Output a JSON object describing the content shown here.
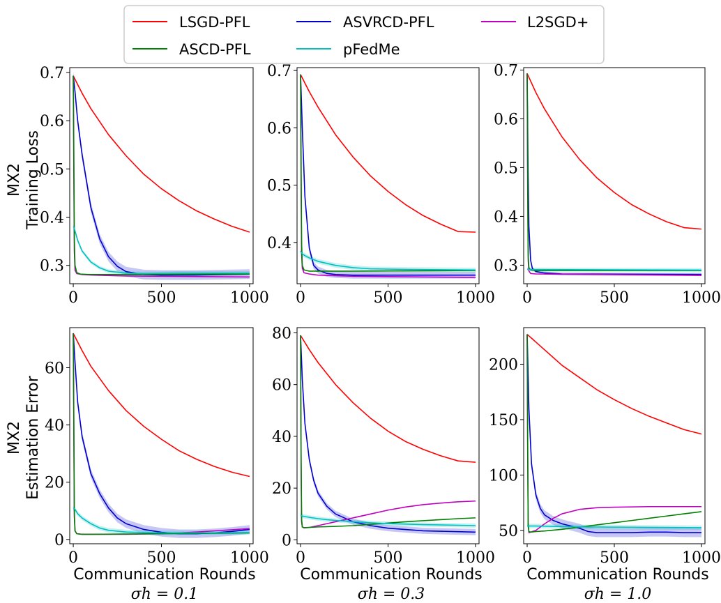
{
  "legend": {
    "entries": [
      {
        "label": "LSGD-PFL",
        "color": "#ff0000"
      },
      {
        "label": "ASVRCD-PFL",
        "color": "#0000cc"
      },
      {
        "label": "L2SGD+",
        "color": "#c000c0"
      },
      {
        "label": "ASCD-PFL",
        "color": "#008000"
      },
      {
        "label": "pFedMe",
        "color": "#00bfbf"
      }
    ]
  },
  "rows": [
    {
      "ylabel_line1": "MX2",
      "ylabel_line2": "Training Loss"
    },
    {
      "ylabel_line1": "MX2",
      "ylabel_line2": "Estimation Error"
    }
  ],
  "columns": [
    {
      "xlabel": "Communication Rounds",
      "sigma_label": "σh = 0.1"
    },
    {
      "xlabel": "Communication Rounds",
      "sigma_label": "σh = 0.3"
    },
    {
      "xlabel": "Communication Rounds",
      "sigma_label": "σh = 1.0"
    }
  ],
  "chart_data": [
    {
      "type": "line",
      "row": 0,
      "col": 0,
      "xlim": [
        -20,
        1020
      ],
      "ylim": [
        0.262,
        0.71
      ],
      "xticks": [
        0,
        500,
        1000
      ],
      "yticks": [
        0.3,
        0.4,
        0.5,
        0.6,
        0.7
      ],
      "ytick_labels": [
        "0.3",
        "0.4",
        "0.5",
        "0.6",
        "0.7"
      ],
      "series": [
        {
          "name": "LSGD-PFL",
          "color": "#ff0000",
          "x": [
            0,
            50,
            100,
            200,
            300,
            400,
            500,
            600,
            700,
            800,
            900,
            1000
          ],
          "y": [
            0.693,
            0.657,
            0.625,
            0.571,
            0.527,
            0.489,
            0.459,
            0.434,
            0.413,
            0.396,
            0.381,
            0.369
          ]
        },
        {
          "name": "ASVRCD-PFL",
          "color": "#0000cc",
          "band": 0.01,
          "x": [
            0,
            10,
            25,
            50,
            100,
            150,
            200,
            250,
            300,
            400,
            500,
            700,
            1000
          ],
          "y": [
            0.693,
            0.66,
            0.6,
            0.53,
            0.42,
            0.355,
            0.318,
            0.298,
            0.287,
            0.281,
            0.28,
            0.28,
            0.282
          ]
        },
        {
          "name": "L2SGD+",
          "color": "#c000c0",
          "x": [
            0,
            3,
            6,
            10,
            20,
            50,
            100,
            300,
            1000
          ],
          "y": [
            0.693,
            0.5,
            0.33,
            0.29,
            0.283,
            0.281,
            0.28,
            0.278,
            0.276
          ]
        },
        {
          "name": "ASCD-PFL",
          "color": "#008000",
          "x": [
            0,
            3,
            6,
            10,
            20,
            40,
            100,
            300,
            1000
          ],
          "y": [
            0.693,
            0.55,
            0.36,
            0.3,
            0.285,
            0.282,
            0.281,
            0.281,
            0.282
          ]
        },
        {
          "name": "pFedMe",
          "color": "#00bfbf",
          "band": 0.004,
          "x": [
            0,
            5,
            25,
            50,
            100,
            150,
            200,
            300,
            400,
            600,
            1000
          ],
          "y": [
            0.38,
            0.378,
            0.352,
            0.33,
            0.307,
            0.295,
            0.288,
            0.284,
            0.283,
            0.284,
            0.284
          ]
        }
      ]
    },
    {
      "type": "line",
      "row": 0,
      "col": 1,
      "xlim": [
        -20,
        1020
      ],
      "ylim": [
        0.328,
        0.705
      ],
      "xticks": [
        0,
        500,
        1000
      ],
      "yticks": [
        0.4,
        0.5,
        0.6,
        0.7
      ],
      "ytick_labels": [
        "0.4",
        "0.5",
        "0.6",
        "0.7"
      ],
      "series": [
        {
          "name": "LSGD-PFL",
          "color": "#ff0000",
          "x": [
            0,
            50,
            100,
            200,
            300,
            400,
            500,
            600,
            700,
            800,
            900,
            1000
          ],
          "y": [
            0.693,
            0.663,
            0.636,
            0.588,
            0.549,
            0.516,
            0.489,
            0.466,
            0.447,
            0.432,
            0.419,
            0.418
          ]
        },
        {
          "name": "ASVRCD-PFL",
          "color": "#0000cc",
          "band": 0.006,
          "x": [
            0,
            10,
            25,
            50,
            75,
            100,
            150,
            200,
            300,
            500,
            1000
          ],
          "y": [
            0.693,
            0.6,
            0.48,
            0.39,
            0.36,
            0.352,
            0.346,
            0.344,
            0.343,
            0.343,
            0.343
          ]
        },
        {
          "name": "L2SGD+",
          "color": "#c000c0",
          "x": [
            0,
            3,
            6,
            10,
            20,
            50,
            100,
            300,
            1000
          ],
          "y": [
            0.693,
            0.5,
            0.38,
            0.355,
            0.347,
            0.345,
            0.343,
            0.341,
            0.339
          ]
        },
        {
          "name": "ASCD-PFL",
          "color": "#008000",
          "x": [
            0,
            3,
            6,
            10,
            20,
            50,
            100,
            300,
            1000
          ],
          "y": [
            0.693,
            0.55,
            0.4,
            0.36,
            0.352,
            0.35,
            0.35,
            0.35,
            0.351
          ]
        },
        {
          "name": "pFedMe",
          "color": "#00bfbf",
          "band": 0.004,
          "x": [
            0,
            10,
            25,
            50,
            100,
            200,
            300,
            400,
            600,
            1000
          ],
          "y": [
            0.385,
            0.38,
            0.377,
            0.373,
            0.367,
            0.36,
            0.356,
            0.354,
            0.353,
            0.352
          ]
        }
      ]
    },
    {
      "type": "line",
      "row": 0,
      "col": 2,
      "xlim": [
        -20,
        1020
      ],
      "ylim": [
        0.262,
        0.705
      ],
      "xticks": [
        0,
        500,
        1000
      ],
      "yticks": [
        0.3,
        0.4,
        0.5,
        0.6,
        0.7
      ],
      "ytick_labels": [
        "0.3",
        "0.4",
        "0.5",
        "0.6",
        "0.7"
      ],
      "series": [
        {
          "name": "LSGD-PFL",
          "color": "#ff0000",
          "x": [
            0,
            50,
            100,
            200,
            300,
            400,
            500,
            600,
            700,
            800,
            900,
            1000
          ],
          "y": [
            0.693,
            0.654,
            0.62,
            0.563,
            0.517,
            0.479,
            0.449,
            0.424,
            0.405,
            0.389,
            0.377,
            0.374
          ]
        },
        {
          "name": "ASVRCD-PFL",
          "color": "#0000cc",
          "band": 0.003,
          "x": [
            0,
            5,
            10,
            20,
            30,
            50,
            100,
            200,
            1000
          ],
          "y": [
            0.693,
            0.5,
            0.38,
            0.31,
            0.293,
            0.287,
            0.284,
            0.282,
            0.281
          ]
        },
        {
          "name": "L2SGD+",
          "color": "#c000c0",
          "x": [
            0,
            3,
            6,
            10,
            20,
            50,
            1000
          ],
          "y": [
            0.693,
            0.45,
            0.31,
            0.288,
            0.283,
            0.282,
            0.279
          ]
        },
        {
          "name": "ASCD-PFL",
          "color": "#008000",
          "x": [
            0,
            3,
            6,
            10,
            20,
            50,
            1000
          ],
          "y": [
            0.693,
            0.5,
            0.32,
            0.295,
            0.29,
            0.289,
            0.289
          ]
        },
        {
          "name": "pFedMe",
          "color": "#00bfbf",
          "band": 0.004,
          "x": [
            0,
            5,
            20,
            50,
            100,
            1000
          ],
          "y": [
            0.292,
            0.292,
            0.291,
            0.291,
            0.291,
            0.29
          ]
        }
      ]
    },
    {
      "type": "line",
      "row": 1,
      "col": 0,
      "xlim": [
        -20,
        1020
      ],
      "ylim": [
        -1.5,
        74
      ],
      "xticks": [
        0,
        500,
        1000
      ],
      "yticks": [
        0,
        20,
        40,
        60
      ],
      "ytick_labels": [
        "0",
        "20",
        "40",
        "60"
      ],
      "series": [
        {
          "name": "LSGD-PFL",
          "color": "#ff0000",
          "x": [
            0,
            50,
            100,
            200,
            300,
            400,
            500,
            600,
            700,
            800,
            900,
            1000
          ],
          "y": [
            72,
            66,
            60.5,
            52,
            45,
            39.5,
            35,
            31,
            28,
            25.5,
            23.5,
            22
          ]
        },
        {
          "name": "ASVRCD-PFL",
          "color": "#0000cc",
          "band": 1.5,
          "x": [
            0,
            10,
            25,
            50,
            100,
            150,
            200,
            250,
            300,
            400,
            500,
            600,
            700,
            800,
            900,
            1000
          ],
          "y": [
            72,
            62,
            48,
            36,
            23,
            16,
            11,
            7.5,
            5.5,
            3.5,
            2.5,
            2,
            2,
            2.3,
            2.8,
            3.5
          ]
        },
        {
          "name": "L2SGD+",
          "color": "#c000c0",
          "x": [
            0,
            3,
            6,
            10,
            20,
            50,
            100,
            300,
            500,
            700,
            1000
          ],
          "y": [
            72,
            40,
            8,
            3,
            2,
            1.8,
            1.8,
            1.8,
            2,
            2.6,
            3.8
          ]
        },
        {
          "name": "ASCD-PFL",
          "color": "#008000",
          "x": [
            0,
            3,
            6,
            10,
            20,
            50,
            100,
            300,
            500,
            1000
          ],
          "y": [
            72,
            45,
            10,
            3,
            2,
            1.8,
            1.8,
            1.9,
            2,
            2.3
          ]
        },
        {
          "name": "pFedMe",
          "color": "#00bfbf",
          "band": 0.8,
          "x": [
            0,
            10,
            25,
            50,
            100,
            150,
            200,
            300,
            400,
            500,
            700,
            1000
          ],
          "y": [
            11,
            10.5,
            9,
            7.5,
            5.5,
            4,
            3.2,
            2.6,
            2.4,
            2.3,
            2.3,
            2.4
          ]
        }
      ]
    },
    {
      "type": "line",
      "row": 1,
      "col": 1,
      "xlim": [
        -20,
        1020
      ],
      "ylim": [
        -1.5,
        82
      ],
      "xticks": [
        0,
        500,
        1000
      ],
      "yticks": [
        0,
        20,
        40,
        60,
        80
      ],
      "ytick_labels": [
        "0",
        "20",
        "40",
        "60",
        "80"
      ],
      "series": [
        {
          "name": "LSGD-PFL",
          "color": "#ff0000",
          "x": [
            0,
            50,
            100,
            200,
            300,
            400,
            500,
            600,
            700,
            800,
            900,
            1000
          ],
          "y": [
            79,
            73.5,
            68.5,
            60,
            53,
            47,
            42,
            38,
            35,
            32.5,
            30.5,
            30
          ]
        },
        {
          "name": "ASVRCD-PFL",
          "color": "#0000cc",
          "band": 1.2,
          "x": [
            0,
            10,
            25,
            50,
            75,
            100,
            150,
            200,
            300,
            400,
            500,
            700,
            1000
          ],
          "y": [
            79,
            62,
            45,
            31,
            23,
            18,
            13,
            10,
            7,
            5.5,
            4.5,
            3.5,
            3
          ]
        },
        {
          "name": "L2SGD+",
          "color": "#c000c0",
          "x": [
            0,
            3,
            6,
            10,
            20,
            50,
            100,
            200,
            300,
            400,
            500,
            600,
            700,
            800,
            900,
            1000
          ],
          "y": [
            79,
            30,
            7,
            5,
            4.6,
            4.8,
            5.5,
            7,
            8.5,
            10,
            11.5,
            12.7,
            13.6,
            14.2,
            14.7,
            15
          ]
        },
        {
          "name": "ASCD-PFL",
          "color": "#008000",
          "x": [
            0,
            3,
            6,
            10,
            20,
            50,
            100,
            200,
            300,
            400,
            500,
            600,
            700,
            800,
            900,
            1000
          ],
          "y": [
            79,
            35,
            8,
            5,
            4.7,
            4.8,
            5,
            5.2,
            5.5,
            6,
            6.5,
            7,
            7.4,
            7.8,
            8.2,
            8.5
          ]
        },
        {
          "name": "pFedMe",
          "color": "#00bfbf",
          "band": 0.8,
          "x": [
            0,
            10,
            25,
            50,
            100,
            150,
            200,
            300,
            400,
            500,
            700,
            1000
          ],
          "y": [
            9.5,
            9.2,
            9,
            8.7,
            8.2,
            7.8,
            7.5,
            7,
            6.6,
            6.3,
            5.9,
            5.5
          ]
        }
      ]
    },
    {
      "type": "line",
      "row": 1,
      "col": 2,
      "xlim": [
        -20,
        1020
      ],
      "ylim": [
        38,
        233
      ],
      "xticks": [
        0,
        500,
        1000
      ],
      "yticks": [
        50,
        100,
        150,
        200
      ],
      "ytick_labels": [
        "50",
        "100",
        "150",
        "200"
      ],
      "series": [
        {
          "name": "LSGD-PFL",
          "color": "#ff0000",
          "x": [
            0,
            50,
            100,
            200,
            300,
            400,
            500,
            600,
            700,
            800,
            900,
            1000
          ],
          "y": [
            227,
            220,
            213,
            199,
            188,
            177,
            168,
            160,
            153,
            147,
            141,
            137
          ]
        },
        {
          "name": "ASVRCD-PFL",
          "color": "#0000cc",
          "band": 4,
          "x": [
            0,
            10,
            25,
            50,
            75,
            100,
            150,
            200,
            250,
            300,
            350,
            400,
            500,
            600,
            700,
            800,
            900,
            1000
          ],
          "y": [
            227,
            160,
            110,
            82,
            70,
            64,
            59,
            56,
            54,
            52,
            49,
            48,
            48,
            48,
            48.5,
            48.5,
            48,
            48
          ]
        },
        {
          "name": "L2SGD+",
          "color": "#c000c0",
          "x": [
            0,
            3,
            6,
            10,
            20,
            50,
            100,
            150,
            200,
            300,
            400,
            500,
            700,
            1000
          ],
          "y": [
            227,
            120,
            55,
            48,
            48.5,
            50,
            56,
            61,
            65,
            69,
            70.5,
            71,
            71.5,
            71.5
          ]
        },
        {
          "name": "ASCD-PFL",
          "color": "#008000",
          "x": [
            0,
            3,
            6,
            10,
            20,
            50,
            100,
            200,
            300,
            400,
            500,
            600,
            700,
            800,
            900,
            1000
          ],
          "y": [
            227,
            130,
            55,
            49,
            48.5,
            49,
            49.5,
            51,
            53,
            55,
            57,
            59,
            61,
            63,
            65,
            67
          ]
        },
        {
          "name": "pFedMe",
          "color": "#00bfbf",
          "band": 2,
          "x": [
            0,
            20,
            50,
            100,
            200,
            300,
            500,
            1000
          ],
          "y": [
            54,
            54,
            54,
            53.8,
            53.5,
            53.2,
            53,
            52.5
          ]
        }
      ]
    }
  ]
}
